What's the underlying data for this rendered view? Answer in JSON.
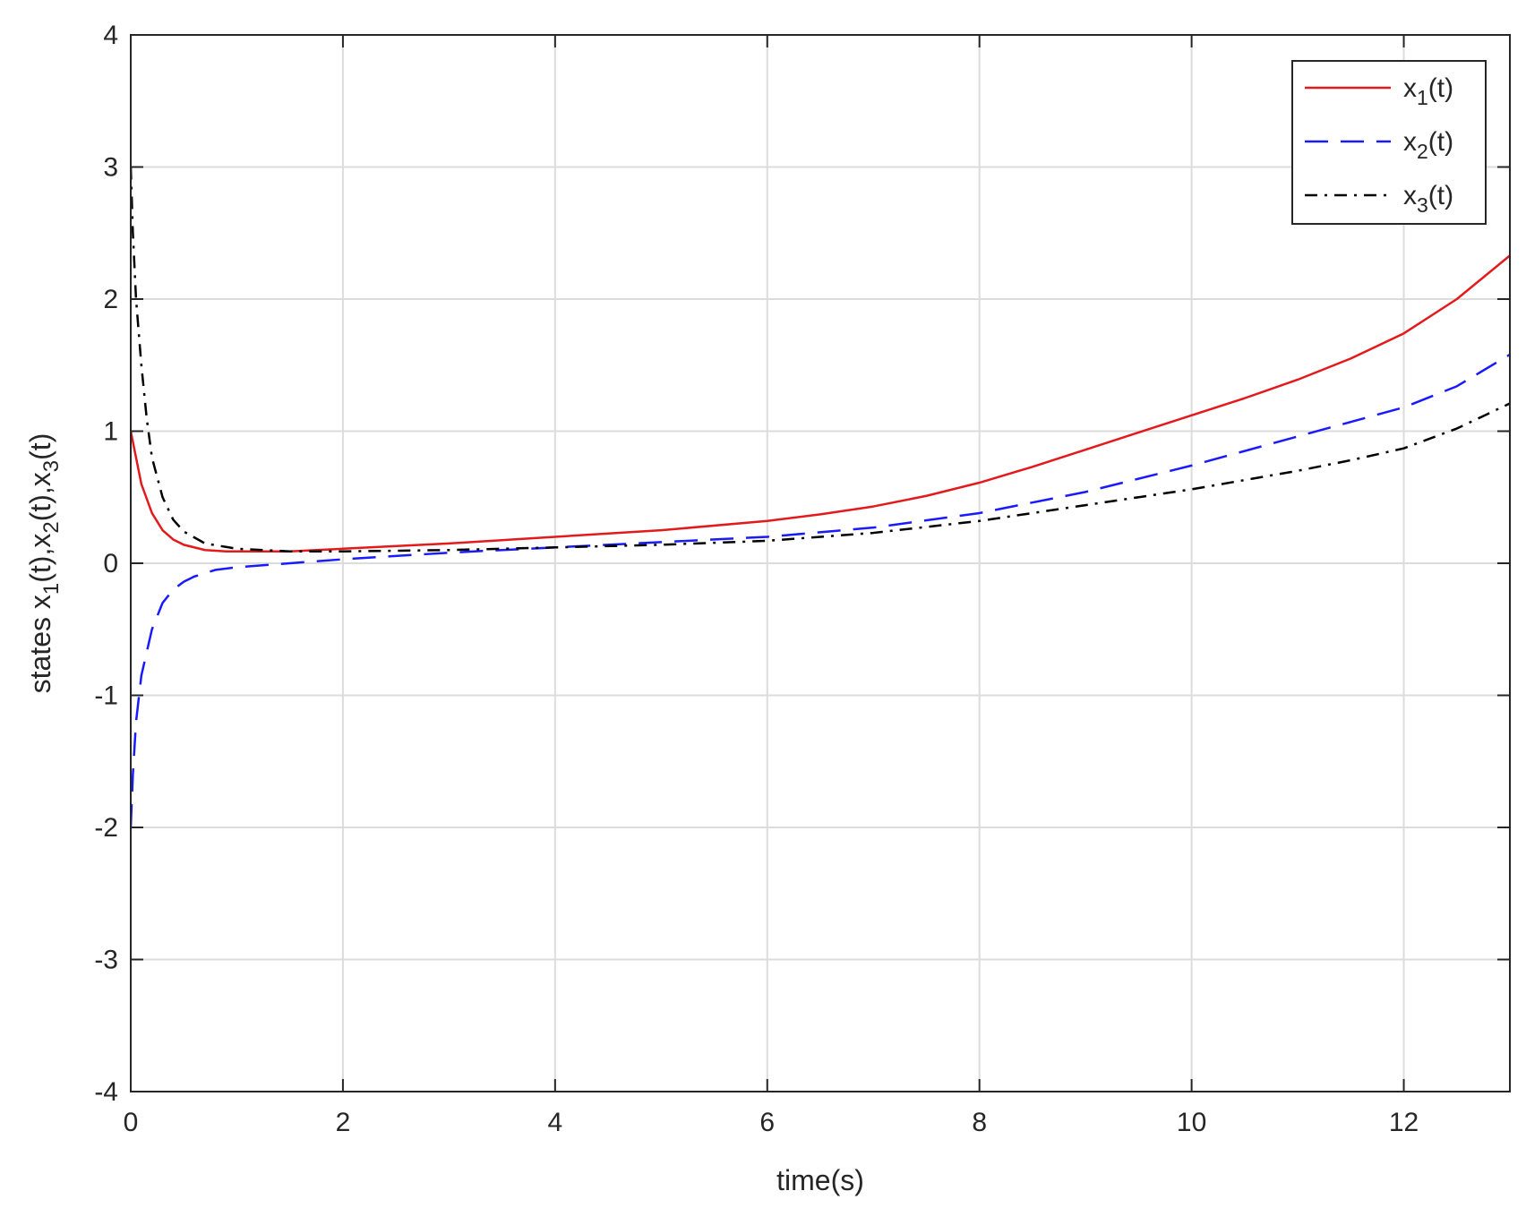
{
  "colors": {
    "x1": "#e31a1c",
    "x2": "#1a1aff",
    "x3": "#000000",
    "grid": "#dcdcdc",
    "axis": "#262626"
  },
  "chart_data": {
    "type": "line",
    "title": "",
    "xlabel": "time(s)",
    "ylabel": {
      "prefix": "states x",
      "parts": [
        {
          "sub": "1",
          "after": "(t),x"
        },
        {
          "sub": "2",
          "after": "(t),x"
        },
        {
          "sub": "3",
          "after": "(t)"
        }
      ]
    },
    "xlim": [
      0,
      13
    ],
    "ylim": [
      -4,
      4
    ],
    "xticks": [
      0,
      2,
      4,
      6,
      8,
      10,
      12
    ],
    "yticks": [
      -4,
      -3,
      -2,
      -1,
      0,
      1,
      2,
      3,
      4
    ],
    "grid": true,
    "legend_position": "top-right",
    "series": [
      {
        "name": {
          "base": "x",
          "sub": "1",
          "suffix": "(t)"
        },
        "color": "#e31a1c",
        "style": "solid",
        "x": [
          0,
          0.05,
          0.1,
          0.2,
          0.3,
          0.4,
          0.5,
          0.7,
          0.9,
          1.2,
          1.5,
          2,
          3,
          4,
          5,
          6,
          6.5,
          7,
          7.5,
          8,
          8.5,
          9,
          9.5,
          10,
          10.5,
          11,
          11.5,
          12,
          12.5,
          13
        ],
        "values": [
          1.0,
          0.8,
          0.6,
          0.38,
          0.25,
          0.18,
          0.14,
          0.1,
          0.09,
          0.09,
          0.09,
          0.11,
          0.15,
          0.2,
          0.25,
          0.32,
          0.37,
          0.43,
          0.51,
          0.61,
          0.73,
          0.86,
          0.99,
          1.12,
          1.25,
          1.39,
          1.55,
          1.74,
          2.0,
          2.33
        ]
      },
      {
        "name": {
          "base": "x",
          "sub": "2",
          "suffix": "(t)"
        },
        "color": "#1a1aff",
        "style": "dashed",
        "x": [
          0,
          0.02,
          0.05,
          0.1,
          0.2,
          0.3,
          0.4,
          0.5,
          0.6,
          0.8,
          1,
          1.5,
          2,
          3,
          4,
          5,
          6,
          7,
          8,
          9,
          10,
          11,
          11.5,
          12,
          12.5,
          13
        ],
        "values": [
          -2.0,
          -1.6,
          -1.2,
          -0.85,
          -0.5,
          -0.3,
          -0.2,
          -0.14,
          -0.1,
          -0.05,
          -0.03,
          0.0,
          0.03,
          0.08,
          0.12,
          0.16,
          0.2,
          0.27,
          0.38,
          0.54,
          0.74,
          0.96,
          1.07,
          1.18,
          1.34,
          1.58
        ]
      },
      {
        "name": {
          "base": "x",
          "sub": "3",
          "suffix": "(t)"
        },
        "color": "#000000",
        "style": "dashdot",
        "x": [
          0,
          0.02,
          0.05,
          0.1,
          0.15,
          0.2,
          0.3,
          0.4,
          0.5,
          0.7,
          1,
          1.5,
          2,
          3,
          4,
          5,
          6,
          7,
          8,
          9,
          10,
          11,
          11.5,
          12,
          12.5,
          13
        ],
        "values": [
          3.0,
          2.5,
          2.0,
          1.5,
          1.1,
          0.8,
          0.5,
          0.33,
          0.24,
          0.15,
          0.11,
          0.09,
          0.09,
          0.1,
          0.12,
          0.14,
          0.17,
          0.23,
          0.32,
          0.44,
          0.56,
          0.7,
          0.78,
          0.87,
          1.02,
          1.21
        ]
      }
    ]
  }
}
